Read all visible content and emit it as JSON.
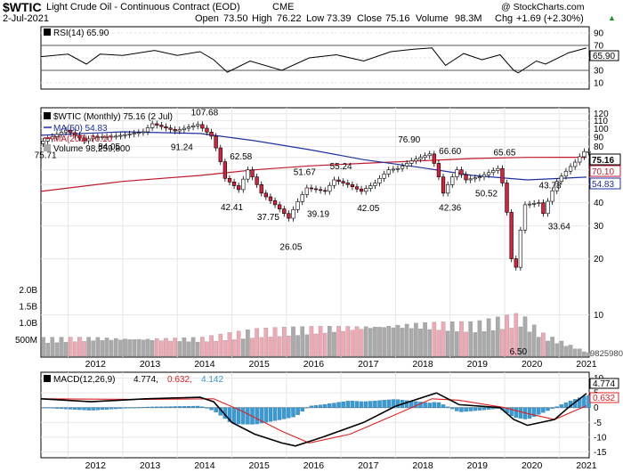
{
  "header": {
    "symbol": "$WTIC",
    "name": "Light Crude Oil - Continuous Contract (EOD)",
    "exchange": "CME",
    "watermark": "@ StockCharts.com",
    "date": "2-Jul-2021",
    "quote": {
      "open_label": "Open",
      "open": "73.50",
      "high_label": "High",
      "high": "76.22",
      "low_label": "Low",
      "low": "73.39",
      "close_label": "Close",
      "close": "75.16",
      "volume_label": "Volume",
      "volume": "98.3M",
      "chg_label": "Chg",
      "chg": "+1.69 (+2.30%)",
      "chg_arrow": "▲"
    }
  },
  "rsi_panel": {
    "legend": "RSI(14) 65.90",
    "ticks": [
      "90",
      "70",
      "50",
      "30",
      "10"
    ],
    "value_tag": "65.90"
  },
  "price_panel": {
    "legend_main": "$WTIC (Monthly) 75.16 (2 Jul)",
    "legend_ma50": "MA(50) 54.83",
    "legend_ma200": "MA(200) 70.10",
    "legend_volume": "Volume 98,259,800",
    "price_ticks": [
      "120",
      "110",
      "100",
      "90",
      "80",
      "70",
      "60",
      "50",
      "40",
      "30",
      "20",
      "10"
    ],
    "volume_ticks": [
      "2.0B",
      "1.5B",
      "1.0B",
      "500M"
    ],
    "tag_close": "75.16",
    "tag_ma200": "70.10",
    "tag_ma50": "54.83",
    "tag_volume": "98259800"
  },
  "macd_panel": {
    "legend": "MACD(12,26,9) 4.774, 0.632, 4.142",
    "legend_label": "MACD(12,26,9)",
    "legend_v1": "4.774,",
    "legend_v2": "0.632,",
    "legend_v3": "4.142",
    "ticks": [
      "10",
      "5",
      "0",
      "-5",
      "-10",
      "-15"
    ],
    "tag_macd": "4.774",
    "tag_signal": "0.632"
  },
  "x_axis_years": [
    "2012",
    "2013",
    "2014",
    "2015",
    "2016",
    "2017",
    "2018",
    "2019",
    "2020",
    "2021"
  ],
  "colors": {
    "up_candle": "#ffffff",
    "down_candle": "#d9213c",
    "ma50": "#1f2fa0",
    "ma200": "#c01a2e",
    "volume_up": "#aaaaaa",
    "volume_down": "#f0a9b4",
    "macd_hist": "#3a9ad4",
    "signal": "#e02020",
    "grid": "#e6e6e6"
  },
  "chart_data": {
    "type": "line",
    "title": "$WTIC Light Crude Oil - Continuous Contract (EOD) CME",
    "scale": "log",
    "period": "monthly",
    "x_range": [
      "2011-07",
      "2021-07"
    ],
    "price_annotations": [
      {
        "label": "75.71",
        "value": 75.71
      },
      {
        "label": "84.05",
        "value": 84.05
      },
      {
        "label": "91.24",
        "value": 91.24
      },
      {
        "label": "107.68",
        "value": 107.68
      },
      {
        "label": "62.58",
        "value": 62.58
      },
      {
        "label": "42.41",
        "value": 42.41
      },
      {
        "label": "37.75",
        "value": 37.75
      },
      {
        "label": "51.67",
        "value": 51.67
      },
      {
        "label": "26.05",
        "value": 26.05
      },
      {
        "label": "39.19",
        "value": 39.19
      },
      {
        "label": "55.24",
        "value": 55.24
      },
      {
        "label": "42.05",
        "value": 42.05
      },
      {
        "label": "76.90",
        "value": 76.9
      },
      {
        "label": "66.60",
        "value": 66.6
      },
      {
        "label": "42.36",
        "value": 42.36
      },
      {
        "label": "50.52",
        "value": 50.52
      },
      {
        "label": "65.65",
        "value": 65.65
      },
      {
        "label": "43.78",
        "value": 43.78
      },
      {
        "label": "33.64",
        "value": 33.64
      },
      {
        "label": "6.50",
        "value": 6.5
      }
    ],
    "close_path": [
      [
        "2011-07",
        83
      ],
      [
        "2012-01",
        98
      ],
      [
        "2012-05",
        86
      ],
      [
        "2012-07",
        90
      ],
      [
        "2012-12",
        91
      ],
      [
        "2013-06",
        96
      ],
      [
        "2013-08",
        106
      ],
      [
        "2014-01",
        97
      ],
      [
        "2014-06",
        105
      ],
      [
        "2014-09",
        91
      ],
      [
        "2014-12",
        54
      ],
      [
        "2015-03",
        47
      ],
      [
        "2015-05",
        60
      ],
      [
        "2015-08",
        45
      ],
      [
        "2015-12",
        37
      ],
      [
        "2016-02",
        33
      ],
      [
        "2016-06",
        48
      ],
      [
        "2016-10",
        46
      ],
      [
        "2016-12",
        53
      ],
      [
        "2017-03",
        50
      ],
      [
        "2017-06",
        46
      ],
      [
        "2017-09",
        51
      ],
      [
        "2017-12",
        60
      ],
      [
        "2018-02",
        61
      ],
      [
        "2018-05",
        67
      ],
      [
        "2018-09",
        73
      ],
      [
        "2018-10",
        65
      ],
      [
        "2018-12",
        45
      ],
      [
        "2019-03",
        60
      ],
      [
        "2019-05",
        53
      ],
      [
        "2019-08",
        55
      ],
      [
        "2019-12",
        61
      ],
      [
        "2020-01",
        51
      ],
      [
        "2020-03",
        20
      ],
      [
        "2020-04",
        18
      ],
      [
        "2020-06",
        39
      ],
      [
        "2020-09",
        40
      ],
      [
        "2020-10",
        35
      ],
      [
        "2021-01",
        52
      ],
      [
        "2021-03",
        59
      ],
      [
        "2021-05",
        66
      ],
      [
        "2021-07",
        75.16
      ]
    ],
    "ma50_path": [
      [
        "2011-07",
        92
      ],
      [
        "2013-01",
        96
      ],
      [
        "2014-06",
        94
      ],
      [
        "2015-06",
        86
      ],
      [
        "2016-06",
        77
      ],
      [
        "2017-06",
        68
      ],
      [
        "2018-06",
        62
      ],
      [
        "2019-06",
        56
      ],
      [
        "2020-06",
        53
      ],
      [
        "2021-07",
        54.83
      ]
    ],
    "ma200_path": [
      [
        "2011-07",
        46
      ],
      [
        "2013-01",
        52
      ],
      [
        "2014-06",
        56
      ],
      [
        "2015-06",
        60
      ],
      [
        "2016-06",
        63
      ],
      [
        "2017-06",
        65
      ],
      [
        "2018-06",
        67
      ],
      [
        "2019-06",
        69
      ],
      [
        "2020-06",
        70
      ],
      [
        "2021-07",
        70.1
      ]
    ],
    "rsi_path": [
      [
        "2011-07",
        52
      ],
      [
        "2012-01",
        56
      ],
      [
        "2012-05",
        40
      ],
      [
        "2012-08",
        56
      ],
      [
        "2013-01",
        54
      ],
      [
        "2013-08",
        62
      ],
      [
        "2014-01",
        54
      ],
      [
        "2014-06",
        60
      ],
      [
        "2014-09",
        47
      ],
      [
        "2014-12",
        27
      ],
      [
        "2015-05",
        45
      ],
      [
        "2015-12",
        30
      ],
      [
        "2016-06",
        50
      ],
      [
        "2016-12",
        55
      ],
      [
        "2017-06",
        45
      ],
      [
        "2017-12",
        60
      ],
      [
        "2018-05",
        64
      ],
      [
        "2018-09",
        66
      ],
      [
        "2018-12",
        38
      ],
      [
        "2019-04",
        57
      ],
      [
        "2019-08",
        47
      ],
      [
        "2019-12",
        55
      ],
      [
        "2020-03",
        30
      ],
      [
        "2020-04",
        26
      ],
      [
        "2020-08",
        45
      ],
      [
        "2020-10",
        40
      ],
      [
        "2021-03",
        58
      ],
      [
        "2021-07",
        65.9
      ]
    ],
    "macd_path": [
      [
        "2011-07",
        3
      ],
      [
        "2012-06",
        2
      ],
      [
        "2013-06",
        3
      ],
      [
        "2014-06",
        3.5
      ],
      [
        "2014-09",
        2
      ],
      [
        "2015-01",
        -5
      ],
      [
        "2015-06",
        -9
      ],
      [
        "2015-12",
        -12
      ],
      [
        "2016-03",
        -13
      ],
      [
        "2016-09",
        -10
      ],
      [
        "2017-06",
        -5
      ],
      [
        "2018-01",
        0.5
      ],
      [
        "2018-10",
        5
      ],
      [
        "2019-03",
        1
      ],
      [
        "2019-12",
        0
      ],
      [
        "2020-03",
        -4
      ],
      [
        "2020-06",
        -6
      ],
      [
        "2020-12",
        -4
      ],
      [
        "2021-03",
        0
      ],
      [
        "2021-07",
        4.774
      ]
    ],
    "signal_path": [
      [
        "2011-07",
        3
      ],
      [
        "2013-06",
        2.8
      ],
      [
        "2014-09",
        3
      ],
      [
        "2015-03",
        -1
      ],
      [
        "2015-12",
        -8
      ],
      [
        "2016-06",
        -12
      ],
      [
        "2017-03",
        -9
      ],
      [
        "2017-12",
        -3
      ],
      [
        "2018-09",
        3
      ],
      [
        "2019-03",
        2.5
      ],
      [
        "2020-01",
        0
      ],
      [
        "2020-06",
        -2
      ],
      [
        "2020-12",
        -4
      ],
      [
        "2021-07",
        0.632
      ]
    ],
    "volume_path_millions": [
      [
        "2011-07",
        480
      ],
      [
        "2012-06",
        520
      ],
      [
        "2013-06",
        500
      ],
      [
        "2014-06",
        500
      ],
      [
        "2015-06",
        700
      ],
      [
        "2016-06",
        780
      ],
      [
        "2017-06",
        860
      ],
      [
        "2018-06",
        920
      ],
      [
        "2019-06",
        880
      ],
      [
        "2020-04",
        1100
      ],
      [
        "2020-09",
        600
      ],
      [
        "2021-07",
        98.26
      ]
    ]
  }
}
